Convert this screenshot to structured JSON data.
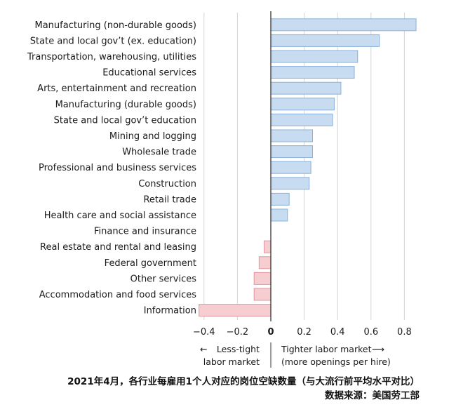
{
  "chart_data": {
    "type": "bar",
    "orientation": "horizontal",
    "categories": [
      "Manufacturing (non-durable goods)",
      "State and local gov’t (ex. education)",
      "Transportation, warehousing, utilities",
      "Educational services",
      "Arts, entertainment and recreation",
      "Manufacturing (durable goods)",
      "State and local gov’t education",
      "Mining and logging",
      "Wholesale trade",
      "Professional and business services",
      "Construction",
      "Retail trade",
      "Health care and social assistance",
      "Finance and insurance",
      "Real estate and rental and leasing",
      "Federal government",
      "Other services",
      "Accommodation and food services",
      "Information"
    ],
    "values": [
      0.87,
      0.65,
      0.52,
      0.5,
      0.42,
      0.38,
      0.37,
      0.25,
      0.25,
      0.24,
      0.23,
      0.11,
      0.1,
      0.0,
      -0.04,
      -0.07,
      -0.1,
      -0.1,
      -0.43
    ],
    "xlim": [
      -0.43,
      0.87
    ],
    "xticks": [
      -0.4,
      -0.2,
      0,
      0.2,
      0.4,
      0.6,
      0.8
    ],
    "xtick_labels": [
      "−0.4",
      "−0.2",
      "0",
      "0.2",
      "0.4",
      "0.6",
      "0.8"
    ],
    "colors": {
      "positive_fill": "#c7dbf1",
      "positive_stroke": "#8bb1d8",
      "negative_fill": "#f6cdd1",
      "negative_stroke": "#e3959d",
      "grid": "#d4d4d4",
      "zero_line": "#333333"
    },
    "grid": true,
    "annotations": {
      "left_arrow": "←",
      "left_line1": "Less-tight",
      "left_line2": "labor market",
      "right_line1": "Tighter labor market",
      "right_arrow": "⟶",
      "right_line2": "(more openings per hire)"
    }
  },
  "caption": {
    "line1": "2021年4月，各行业每雇用1个人对应的岗位空缺数量（与大流行前平均水平对比）",
    "line2": "数据来源：美国劳工部"
  }
}
